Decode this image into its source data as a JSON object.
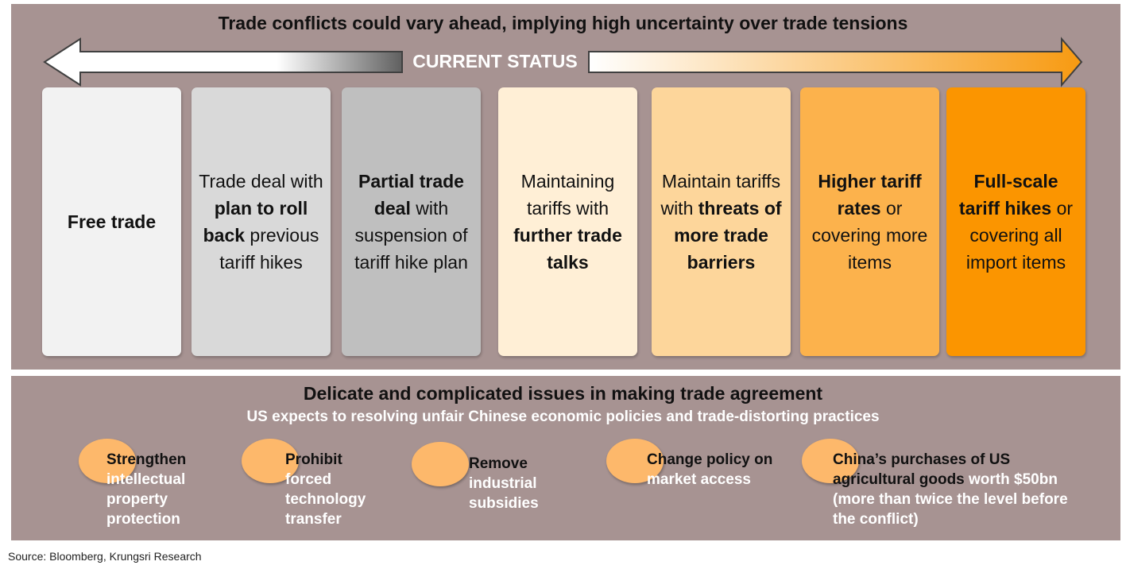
{
  "title": "Trade conflicts could vary ahead, implying high uncertainty over trade tensions",
  "status_label": "CURRENT STATUS",
  "scenarios": [
    {
      "parts": [
        {
          "t": "Free trade",
          "b": true
        }
      ]
    },
    {
      "parts": [
        {
          "t": "Trade deal with ",
          "b": false
        },
        {
          "t": "plan to roll back",
          "b": true
        },
        {
          "t": " previous tariff hikes",
          "b": false
        }
      ]
    },
    {
      "parts": [
        {
          "t": "Partial trade deal",
          "b": true
        },
        {
          "t": " with suspension of tariff hike plan",
          "b": false
        }
      ]
    },
    {
      "parts": [
        {
          "t": "Maintaining tariffs with ",
          "b": false
        },
        {
          "t": "further trade talks",
          "b": true
        }
      ]
    },
    {
      "parts": [
        {
          "t": "Maintain tariffs with ",
          "b": false
        },
        {
          "t": "threats of more trade barriers",
          "b": true
        }
      ]
    },
    {
      "parts": [
        {
          "t": "Higher tariff rates",
          "b": true
        },
        {
          "t": " or covering more items",
          "b": false
        }
      ]
    },
    {
      "parts": [
        {
          "t": "Full-scale tariff hikes",
          "b": true
        },
        {
          "t": " or covering all import items",
          "b": false
        }
      ]
    }
  ],
  "issues_title": "Delicate and complicated issues in making trade agreement",
  "issues_subtitle": "US expects to resolving unfair Chinese economic policies and trade-distorting practices",
  "issues": [
    {
      "lead": "Strengthen",
      "rest": " intellectual property protection"
    },
    {
      "lead": "Prohibit",
      "rest": " forced technology transfer"
    },
    {
      "lead": "Remove",
      "rest": " industrial subsidies"
    },
    {
      "lead": "Change policy on",
      "rest": " market access"
    },
    {
      "lead": "China’s purchases of US agricultural goods",
      "rest": " worth $50bn (more than twice the level before the conflict)"
    }
  ],
  "source": "Source: Bloomberg, Krungsri Research",
  "colors": {
    "panel": "#a79392",
    "box_colors": [
      "#f2f2f2",
      "#d9d9d9",
      "#bfbfbf",
      "#ffefd6",
      "#fdd69b",
      "#fcb24c",
      "#fb9500"
    ],
    "circle": "#fdb86b",
    "arrow_right_end": "#f79a11"
  }
}
